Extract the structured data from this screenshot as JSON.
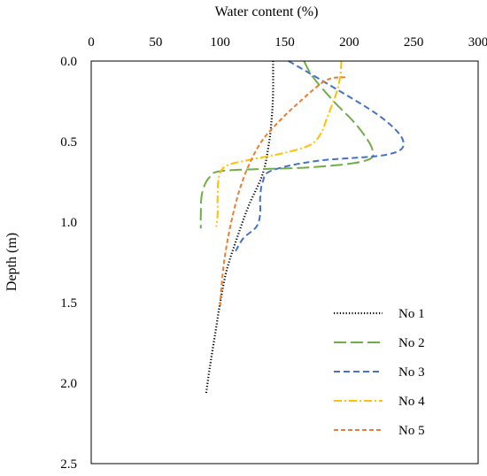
{
  "chart_data": {
    "type": "line",
    "xlabel": "Water content (%)",
    "ylabel": "Depth (m)",
    "xlim": [
      0,
      300
    ],
    "ylim": [
      0,
      2.5
    ],
    "x_axis_position": "top",
    "y_axis_inverted": true,
    "xticks": [
      "0",
      "50",
      "100",
      "150",
      "200",
      "250",
      "300"
    ],
    "yticks": [
      "0.0",
      "0.5",
      "1.0",
      "1.5",
      "2.0",
      "2.5"
    ],
    "grid": false,
    "legend_position": "bottom-right",
    "series": [
      {
        "name": "No 1",
        "color": "#000000",
        "dash": "dotted",
        "points": [
          [
            141,
            0.0
          ],
          [
            141,
            0.2
          ],
          [
            140,
            0.35
          ],
          [
            138,
            0.5
          ],
          [
            133,
            0.7
          ],
          [
            122,
            0.9
          ],
          [
            113,
            1.1
          ],
          [
            105,
            1.3
          ],
          [
            100,
            1.5
          ],
          [
            96,
            1.7
          ],
          [
            92,
            1.9
          ],
          [
            89,
            2.07
          ]
        ]
      },
      {
        "name": "No 2",
        "color": "#70AD47",
        "dash": "long-dash",
        "points": [
          [
            165,
            0.0
          ],
          [
            172,
            0.1
          ],
          [
            188,
            0.25
          ],
          [
            206,
            0.4
          ],
          [
            218,
            0.55
          ],
          [
            212,
            0.62
          ],
          [
            170,
            0.66
          ],
          [
            105,
            0.68
          ],
          [
            92,
            0.72
          ],
          [
            86,
            0.82
          ],
          [
            85,
            0.95
          ],
          [
            85,
            1.04
          ]
        ]
      },
      {
        "name": "No 3",
        "color": "#4472C4",
        "dash": "dashed",
        "points": [
          [
            153,
            0.0
          ],
          [
            185,
            0.15
          ],
          [
            225,
            0.35
          ],
          [
            242,
            0.5
          ],
          [
            230,
            0.58
          ],
          [
            175,
            0.62
          ],
          [
            140,
            0.68
          ],
          [
            133,
            0.75
          ],
          [
            131,
            0.85
          ],
          [
            131,
            0.95
          ],
          [
            128,
            1.03
          ],
          [
            118,
            1.1
          ],
          [
            112,
            1.18
          ]
        ]
      },
      {
        "name": "No 4",
        "color": "#FFC000",
        "dash": "dash-dot",
        "points": [
          [
            194,
            0.0
          ],
          [
            193,
            0.1
          ],
          [
            190,
            0.2
          ],
          [
            183,
            0.35
          ],
          [
            178,
            0.45
          ],
          [
            170,
            0.52
          ],
          [
            150,
            0.57
          ],
          [
            125,
            0.61
          ],
          [
            105,
            0.65
          ],
          [
            99,
            0.72
          ],
          [
            98,
            0.85
          ],
          [
            98,
            0.95
          ],
          [
            97,
            1.03
          ]
        ]
      },
      {
        "name": "No 5",
        "color": "#ED7D31",
        "dash": "short-dash",
        "points": [
          [
            197,
            0.1
          ],
          [
            182,
            0.12
          ],
          [
            162,
            0.25
          ],
          [
            145,
            0.38
          ],
          [
            132,
            0.5
          ],
          [
            122,
            0.65
          ],
          [
            115,
            0.8
          ],
          [
            110,
            0.95
          ],
          [
            106,
            1.1
          ],
          [
            103,
            1.25
          ],
          [
            101,
            1.4
          ],
          [
            100,
            1.52
          ]
        ]
      }
    ]
  }
}
